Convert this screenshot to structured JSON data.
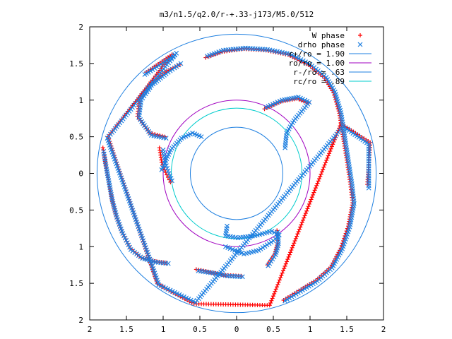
{
  "chart_data": {
    "type": "scatter",
    "title": "m3/n1.5/q2.0/r-+.33-j173/M5.0/512",
    "xlabel": "",
    "ylabel": "",
    "xlim": [
      -2,
      2
    ],
    "ylim": [
      -2,
      2
    ],
    "x_tick_values": [
      -2,
      -1.5,
      -1,
      -0.5,
      0,
      0.5,
      1,
      1.5,
      2
    ],
    "x_tick_labels": [
      "2",
      "1.5",
      "1",
      "0.5",
      "0",
      "0.5",
      "1",
      "1.5",
      "2"
    ],
    "y_tick_values": [
      2,
      1.5,
      1,
      0.5,
      0,
      -0.5,
      -1,
      -1.5,
      -2
    ],
    "y_tick_labels": [
      "2",
      "1.5",
      "1",
      "0.5",
      "0",
      "0.5",
      "1",
      "1.5",
      "2"
    ],
    "grid": false,
    "legend_position": "top-right",
    "series": [
      {
        "name": "W phase",
        "kind": "points",
        "marker": "plus",
        "color": "#ff0000",
        "arms": [
          [
            [
              -1.82,
              0.35
            ],
            [
              -1.78,
              0.1
            ],
            [
              -1.74,
              -0.12
            ],
            [
              -1.7,
              -0.35
            ],
            [
              -1.64,
              -0.58
            ],
            [
              -1.56,
              -0.8
            ],
            [
              -1.45,
              -1.02
            ],
            [
              -1.3,
              -1.15
            ],
            [
              -1.12,
              -1.2
            ],
            [
              -0.96,
              -1.22
            ]
          ],
          [
            [
              -0.98,
              0.5
            ],
            [
              -1.18,
              0.55
            ],
            [
              -1.35,
              0.78
            ],
            [
              -1.32,
              1.02
            ],
            [
              -1.18,
              1.22
            ],
            [
              -0.98,
              1.38
            ],
            [
              -0.78,
              1.48
            ]
          ],
          [
            [
              -0.42,
              1.58
            ],
            [
              -0.2,
              1.66
            ],
            [
              0.1,
              1.7
            ],
            [
              0.4,
              1.68
            ],
            [
              0.7,
              1.62
            ],
            [
              0.98,
              1.48
            ],
            [
              1.2,
              1.3
            ],
            [
              1.32,
              1.1
            ],
            [
              1.4,
              0.82
            ],
            [
              1.45,
              0.5
            ],
            [
              1.5,
              0.18
            ],
            [
              1.55,
              -0.15
            ],
            [
              1.58,
              -0.4
            ],
            [
              1.52,
              -0.72
            ],
            [
              1.42,
              -1.02
            ],
            [
              1.28,
              -1.28
            ],
            [
              1.08,
              -1.46
            ],
            [
              0.85,
              -1.6
            ],
            [
              0.64,
              -1.73
            ]
          ],
          [
            [
              -1.05,
              0.35
            ],
            [
              -1.02,
              0.15
            ],
            [
              -0.95,
              -0.02
            ],
            [
              -0.9,
              -0.12
            ]
          ],
          [
            [
              0.38,
              0.88
            ],
            [
              0.6,
              0.98
            ],
            [
              0.82,
              1.02
            ],
            [
              0.98,
              0.96
            ]
          ],
          [
            [
              0.55,
              -0.78
            ],
            [
              0.56,
              -0.95
            ],
            [
              0.52,
              -1.1
            ],
            [
              0.42,
              -1.25
            ]
          ],
          [
            [
              -0.55,
              -1.31
            ],
            [
              -0.35,
              -1.35
            ],
            [
              -0.15,
              -1.39
            ],
            [
              0.06,
              -1.4
            ]
          ],
          [
            [
              -1.23,
              1.38
            ],
            [
              -0.88,
              1.62
            ],
            [
              -1.75,
              0.5
            ],
            [
              -1.08,
              -1.5
            ],
            [
              -0.95,
              -1.58
            ],
            [
              -0.58,
              -1.78
            ],
            [
              0.45,
              -1.8
            ],
            [
              1.42,
              0.68
            ],
            [
              1.82,
              0.42
            ],
            [
              1.78,
              -0.15
            ]
          ]
        ]
      },
      {
        "name": "drho phase",
        "kind": "points",
        "marker": "x",
        "color": "#1e7fe0",
        "arms": [
          [
            [
              -1.81,
              0.3
            ],
            [
              -1.77,
              0.06
            ],
            [
              -1.73,
              -0.16
            ],
            [
              -1.69,
              -0.38
            ],
            [
              -1.63,
              -0.6
            ],
            [
              -1.55,
              -0.82
            ],
            [
              -1.44,
              -1.04
            ],
            [
              -1.28,
              -1.16
            ],
            [
              -1.1,
              -1.21
            ],
            [
              -0.93,
              -1.23
            ]
          ],
          [
            [
              -0.96,
              0.48
            ],
            [
              -1.16,
              0.52
            ],
            [
              -1.33,
              0.76
            ],
            [
              -1.3,
              1.0
            ],
            [
              -1.16,
              1.2
            ],
            [
              -0.96,
              1.36
            ],
            [
              -0.76,
              1.5
            ]
          ],
          [
            [
              -0.4,
              1.6
            ],
            [
              -0.18,
              1.68
            ],
            [
              0.12,
              1.71
            ],
            [
              0.42,
              1.69
            ],
            [
              0.72,
              1.63
            ],
            [
              1.0,
              1.49
            ],
            [
              1.22,
              1.31
            ],
            [
              1.34,
              1.11
            ],
            [
              1.42,
              0.83
            ],
            [
              1.47,
              0.51
            ],
            [
              1.52,
              0.19
            ],
            [
              1.57,
              -0.14
            ],
            [
              1.6,
              -0.41
            ],
            [
              1.54,
              -0.73
            ],
            [
              1.44,
              -1.03
            ],
            [
              1.3,
              -1.29
            ],
            [
              1.1,
              -1.47
            ],
            [
              0.87,
              -1.61
            ],
            [
              0.66,
              -1.74
            ]
          ],
          [
            [
              -1.0,
              0.32
            ],
            [
              -0.97,
              0.14
            ],
            [
              -0.92,
              0.0
            ],
            [
              -0.88,
              -0.1
            ]
          ],
          [
            [
              -1.02,
              0.05
            ],
            [
              -0.9,
              0.32
            ],
            [
              -0.75,
              0.48
            ],
            [
              -0.6,
              0.55
            ],
            [
              -0.48,
              0.5
            ]
          ],
          [
            [
              0.4,
              0.9
            ],
            [
              0.62,
              1.0
            ],
            [
              0.84,
              1.04
            ],
            [
              0.99,
              0.97
            ],
            [
              0.78,
              0.72
            ],
            [
              0.68,
              0.55
            ],
            [
              0.66,
              0.35
            ]
          ],
          [
            [
              0.56,
              -0.8
            ],
            [
              0.57,
              -0.96
            ],
            [
              0.53,
              -1.11
            ],
            [
              0.43,
              -1.26
            ]
          ],
          [
            [
              -0.13,
              -0.72
            ],
            [
              -0.15,
              -0.85
            ],
            [
              0.02,
              -0.88
            ],
            [
              0.25,
              -0.85
            ],
            [
              0.48,
              -0.79
            ],
            [
              0.58,
              -0.84
            ],
            [
              0.5,
              -0.92
            ],
            [
              0.3,
              -1.05
            ],
            [
              0.1,
              -1.1
            ],
            [
              -0.15,
              -1.0
            ]
          ],
          [
            [
              -0.52,
              -1.33
            ],
            [
              -0.32,
              -1.36
            ],
            [
              -0.12,
              -1.4
            ],
            [
              0.08,
              -1.41
            ]
          ],
          [
            [
              -1.25,
              1.35
            ],
            [
              -1.2,
              1.38
            ],
            [
              -0.86,
              1.6
            ],
            [
              -0.82,
              1.64
            ],
            [
              -1.76,
              0.48
            ],
            [
              -1.06,
              -1.52
            ],
            [
              -0.56,
              -1.76
            ],
            [
              1.45,
              0.64
            ],
            [
              1.8,
              0.4
            ],
            [
              1.8,
              -0.2
            ]
          ]
        ]
      },
      {
        "name": "r+/ro = 1.90",
        "kind": "circle",
        "radius": 1.9,
        "color": "#1e7fe0"
      },
      {
        "name": "ro/ro = 1.00",
        "kind": "circle",
        "radius": 1.0,
        "color": "#a000c0"
      },
      {
        "name": "r-/ro = .63",
        "kind": "circle",
        "radius": 0.63,
        "color": "#1e7fe0"
      },
      {
        "name": "rc/ro = .89",
        "kind": "circle",
        "radius": 0.89,
        "color": "#00cccc"
      }
    ]
  }
}
